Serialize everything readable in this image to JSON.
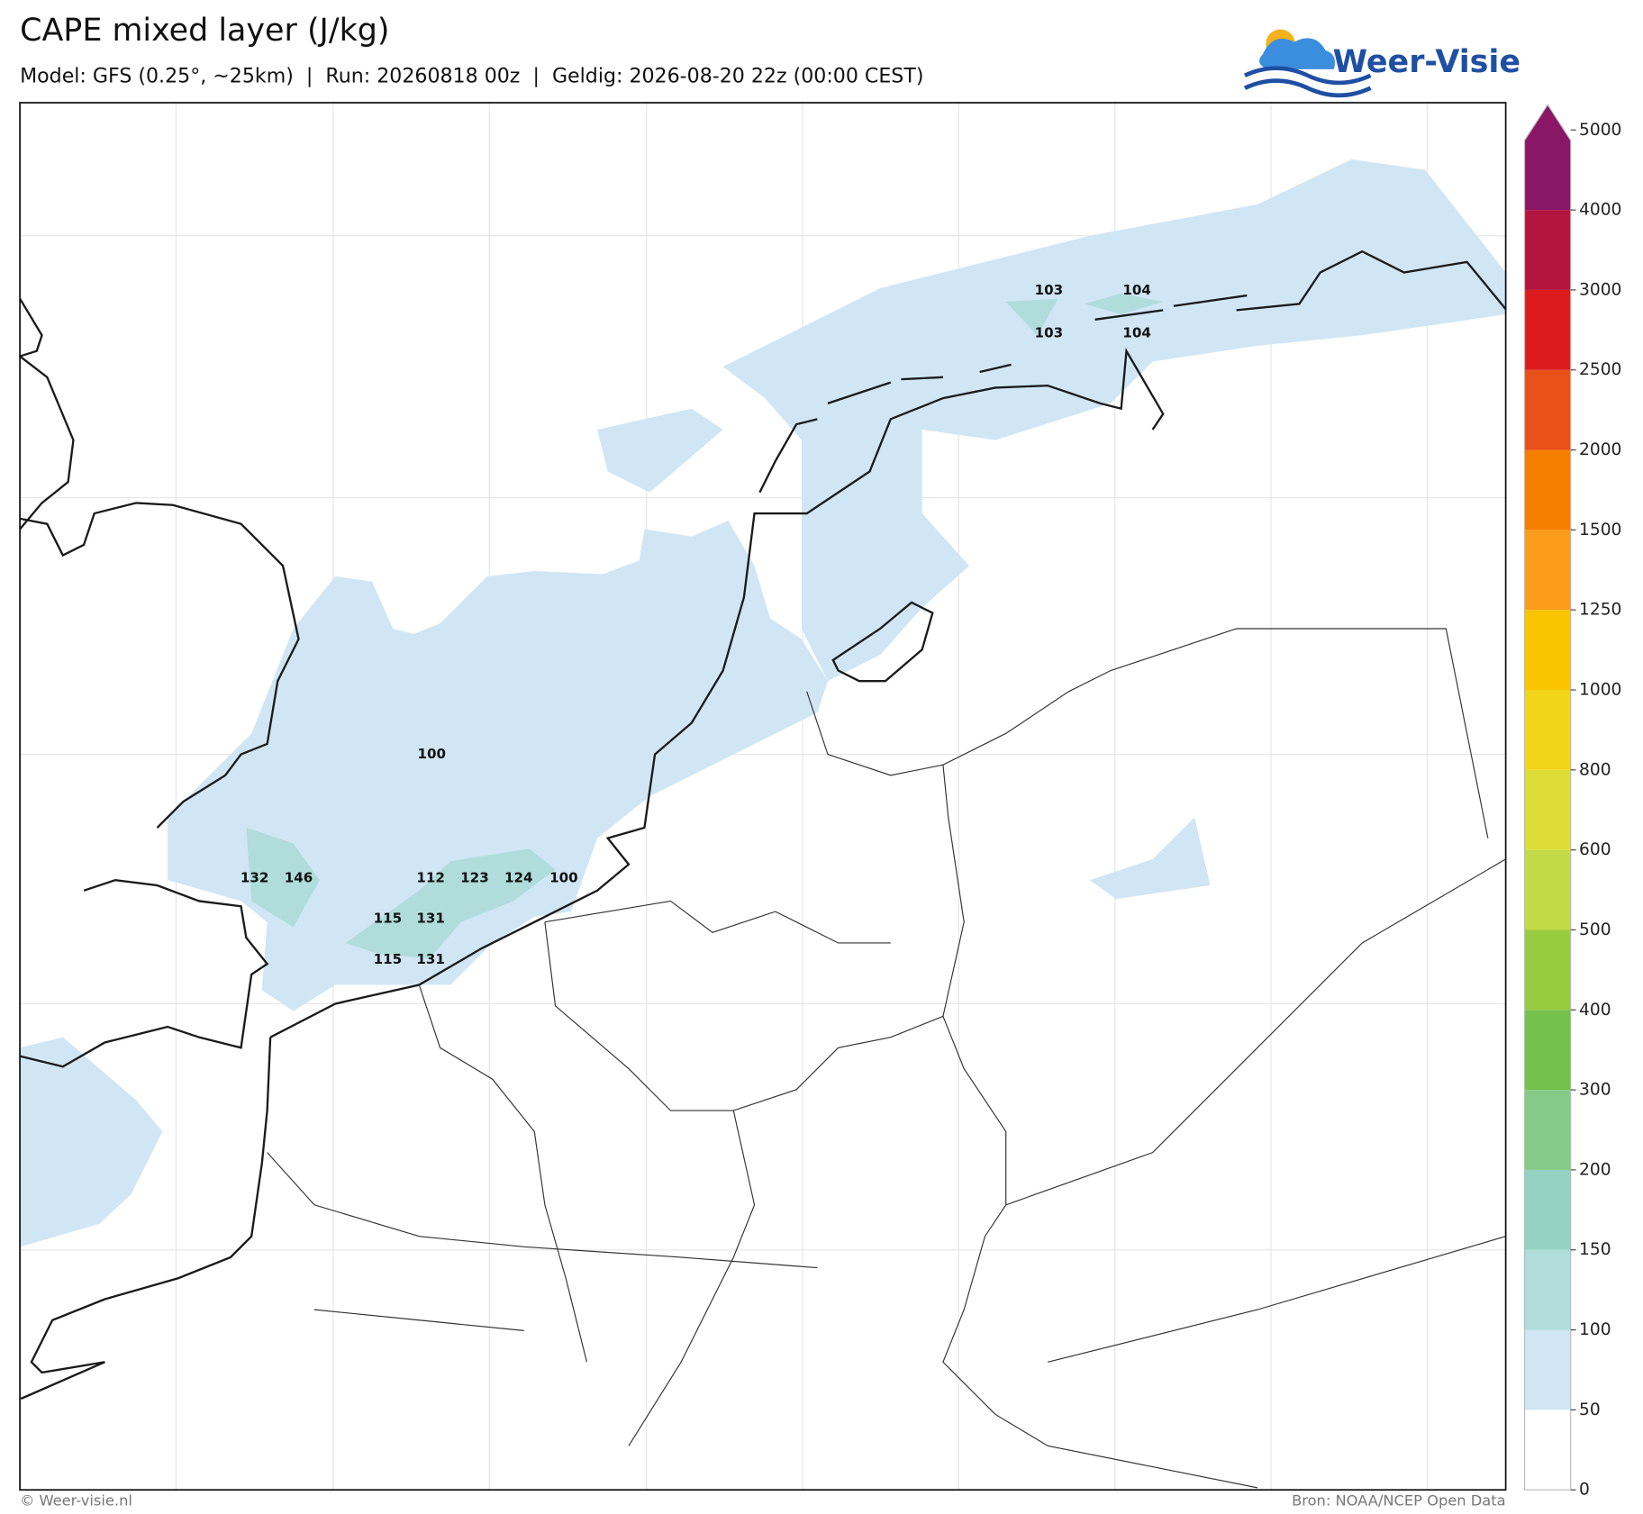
{
  "header": {
    "title": "CAPE mixed layer (J/kg)",
    "subtitle": "Model: GFS (0.25°, ~25km)  |  Run: 20260818 00z  |  Geldig: 2026-08-20 22z (00:00 CEST)",
    "logo": "Weer-Visie"
  },
  "map_labels": [
    103,
    104,
    103,
    104,
    100,
    132,
    146,
    112,
    123,
    124,
    100,
    115,
    131,
    115,
    131
  ],
  "colorbar": {
    "levels": [
      0,
      50,
      100,
      150,
      200,
      300,
      400,
      500,
      600,
      800,
      1000,
      1250,
      1500,
      2000,
      2500,
      3000,
      4000,
      5000
    ],
    "colors": [
      "#ffffff",
      "#d0e6f5",
      "#b0dcdc",
      "#93d2c3",
      "#85ca86",
      "#74c24c",
      "#98cc40",
      "#c2da46",
      "#dedd38",
      "#f2d418",
      "#fbc400",
      "#fb9c1a",
      "#f77f00",
      "#e9501a",
      "#dc1c1c",
      "#b3153e",
      "#8a1668"
    ]
  },
  "footer": {
    "left": "© Weer-visie.nl",
    "right": "Bron: NOAA/NCEP Open Data"
  }
}
